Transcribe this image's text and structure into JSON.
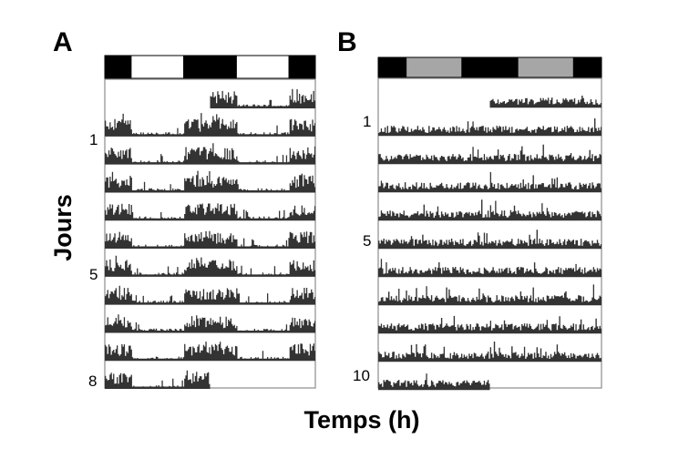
{
  "figure": {
    "xlabel": "Temps (h)",
    "ylabel": "Jours"
  },
  "colors": {
    "dark": "#000000",
    "light": "#ffffff",
    "subjective_day": "#a6a6a6",
    "activity": "#333333",
    "frame": "#8c8c8c"
  },
  "chart_data": [
    {
      "type": "actogram",
      "panel": "A",
      "lighting_schedule": [
        "dark",
        "light",
        "dark",
        "light",
        "dark"
      ],
      "lighting_boundaries_h": [
        0,
        2,
        6,
        10,
        14,
        16
      ],
      "plot_span_h": 16,
      "rows": 11,
      "day_tick_labels": [
        {
          "row": 2,
          "label": "1"
        },
        {
          "row": 6,
          "label": "5"
        },
        {
          "row": 10,
          "label": "8"
        }
      ],
      "activity_extent_h": {
        "first_row_start": 8,
        "last_row_end": 8
      },
      "activity_level": "high during dark phases, low during light phases"
    },
    {
      "type": "actogram",
      "panel": "B",
      "lighting_schedule": [
        "dark",
        "subjective_day",
        "dark",
        "subjective_day",
        "dark"
      ],
      "lighting_boundaries_h": [
        0,
        2,
        6,
        10,
        14,
        16
      ],
      "plot_span_h": 16,
      "rows": 11,
      "day_tick_labels": [
        {
          "row": 2,
          "label": "1"
        },
        {
          "row": 6,
          "label": "5"
        },
        {
          "row": 11,
          "label": "10"
        }
      ],
      "activity_extent_h": {
        "first_row_start": 8,
        "last_row_end": 8
      },
      "activity_level": "continuous, free-running in constant darkness"
    }
  ]
}
